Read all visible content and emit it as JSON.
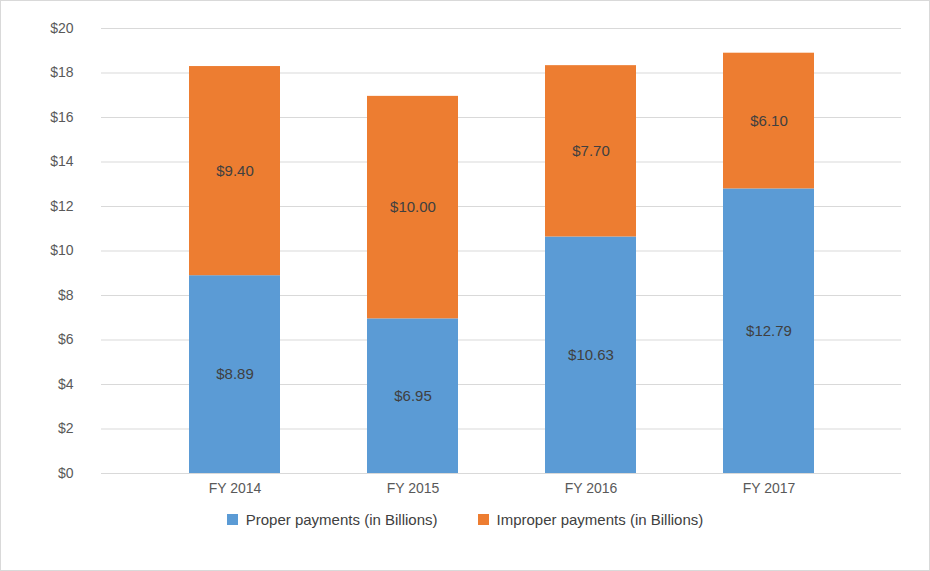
{
  "chart_data": {
    "type": "bar",
    "stacked": true,
    "data_labels": true,
    "grid": true,
    "legend": "bottom",
    "categories": [
      "FY 2014",
      "FY 2015",
      "FY 2016",
      "FY 2017"
    ],
    "series": [
      {
        "name": "Proper payments (in Billions)",
        "color": "#5b9bd5",
        "values": [
          8.89,
          6.95,
          10.63,
          12.79
        ],
        "value_labels": [
          "$8.89",
          "$6.95",
          "$10.63",
          "$12.79"
        ]
      },
      {
        "name": "Improper payments (in Billions)",
        "color": "#ed7d31",
        "values": [
          9.4,
          10.0,
          7.7,
          6.1
        ],
        "value_labels": [
          "$9.40",
          "$10.00",
          "$7.70",
          "$6.10"
        ]
      }
    ],
    "ylim": [
      0,
      20
    ],
    "yticks": [
      {
        "value": 0,
        "label": "$0"
      },
      {
        "value": 2,
        "label": "$2"
      },
      {
        "value": 4,
        "label": "$4"
      },
      {
        "value": 6,
        "label": "$6"
      },
      {
        "value": 8,
        "label": "$8"
      },
      {
        "value": 10,
        "label": "$10"
      },
      {
        "value": 12,
        "label": "$12"
      },
      {
        "value": 14,
        "label": "$14"
      },
      {
        "value": 16,
        "label": "$16"
      },
      {
        "value": 18,
        "label": "$18"
      },
      {
        "value": 20,
        "label": "$20"
      }
    ]
  }
}
